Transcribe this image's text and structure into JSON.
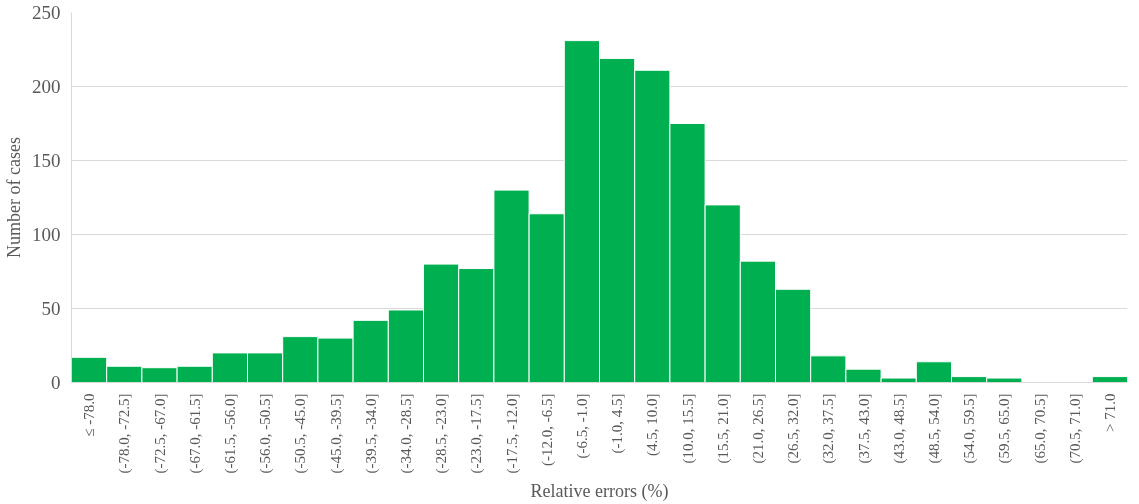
{
  "chart_data": {
    "type": "bar",
    "xlabel": "Relative errors (%)",
    "ylabel": "Number of cases",
    "categories": [
      "≤ -78.0",
      "(-78.0, -72.5]",
      "(-72.5, -67.0]",
      "(-67.0, -61.5]",
      "(-61.5, -56.0]",
      "(-56.0, -50.5]",
      "(-50.5, -45.0]",
      "(-45.0, -39.5]",
      "(-39.5, -34.0]",
      "(-34.0, -28.5]",
      "(-28.5, -23.0]",
      "(-23.0, -17.5]",
      "(-17.5, -12.0]",
      "(-12.0, -6.5]",
      "(-6.5, -1.0]",
      "(-1.0, 4.5]",
      "(4.5, 10.0]",
      "(10.0, 15.5]",
      "(15.5, 21.0]",
      "(21.0, 26.5]",
      "(26.5, 32.0]",
      "(32.0, 37.5]",
      "(37.5, 43.0]",
      "(43.0, 48.5]",
      "(48.5, 54.0]",
      "(54.0, 59.5]",
      "(59.5, 65.0]",
      "(65.0, 70.5]",
      "(70.5, 71.0]",
      "> 71.0"
    ],
    "values": [
      17,
      11,
      10,
      11,
      20,
      20,
      31,
      30,
      42,
      49,
      80,
      77,
      130,
      114,
      231,
      219,
      211,
      175,
      120,
      82,
      63,
      18,
      9,
      3,
      14,
      4,
      3,
      0,
      0,
      4
    ],
    "color": "#00b050",
    "ylim": [
      0,
      250
    ],
    "yticks": [
      0,
      50,
      100,
      150,
      200,
      250
    ],
    "grid": "y"
  }
}
